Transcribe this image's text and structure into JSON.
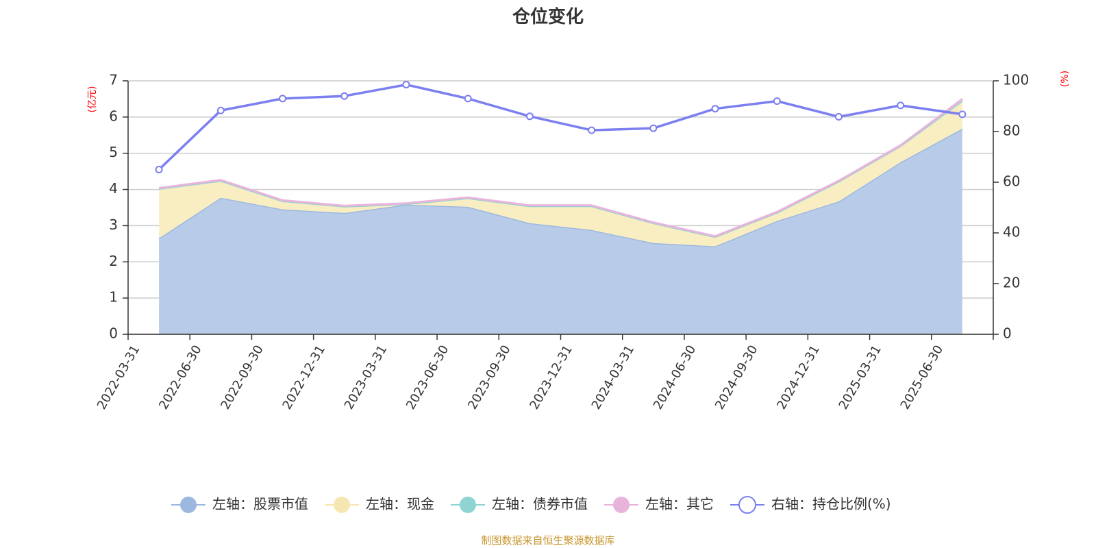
{
  "chart_data": {
    "type": "area",
    "title": "仓位变化",
    "left_unit": "(亿元)",
    "right_unit": "(%)",
    "categories": [
      "2022-03-31",
      "2022-06-30",
      "2022-09-30",
      "2022-12-31",
      "2023-03-31",
      "2023-06-30",
      "2023-09-30",
      "2023-12-31",
      "2024-03-31",
      "2024-06-30",
      "2024-09-30",
      "2024-12-31",
      "2025-03-31",
      "2025-06-30"
    ],
    "left_axis": {
      "ylim": [
        0,
        7
      ],
      "ticks": [
        "0",
        "1",
        "2",
        "3",
        "4",
        "5",
        "6",
        "7"
      ]
    },
    "right_axis": {
      "ylim": [
        0,
        100
      ],
      "ticks": [
        "0",
        "20",
        "40",
        "60",
        "80",
        "100"
      ]
    },
    "grid": true,
    "legend_position": "bottom",
    "series": [
      {
        "name": "左轴：股票市值",
        "axis": "left",
        "style": "area",
        "color": "#9db8e0",
        "fill": "#b8cce9",
        "values": [
          2.65,
          3.77,
          3.45,
          3.35,
          3.58,
          3.52,
          3.07,
          2.88,
          2.52,
          2.43,
          3.13,
          3.67,
          4.75,
          5.68
        ]
      },
      {
        "name": "左轴：现金",
        "axis": "left",
        "style": "area",
        "color": "#f6e7b2",
        "fill": "#f9eec2",
        "values": [
          1.37,
          0.47,
          0.23,
          0.18,
          0.02,
          0.24,
          0.47,
          0.66,
          0.55,
          0.26,
          0.23,
          0.55,
          0.45,
          0.77
        ]
      },
      {
        "name": "左轴：债券市值",
        "axis": "left",
        "style": "area",
        "color": "#8fd3d3",
        "fill": "#b6e2e2",
        "values": [
          0,
          0,
          0,
          0,
          0,
          0,
          0,
          0,
          0,
          0,
          0,
          0,
          0,
          0
        ]
      },
      {
        "name": "左轴：其它",
        "axis": "left",
        "style": "area",
        "color": "#e9b4dc",
        "fill": "#f2cde8",
        "values": [
          0.02,
          0.02,
          0.02,
          0.02,
          0.02,
          0.02,
          0.02,
          0.02,
          0.02,
          0.02,
          0.02,
          0.02,
          0.02,
          0.05
        ]
      },
      {
        "name": "右轴：持仓比例(%)",
        "axis": "right",
        "style": "line",
        "color": "#7b7fef",
        "values": [
          65,
          88.3,
          93,
          94,
          98.5,
          93,
          86,
          80.5,
          81.3,
          89,
          92,
          85.8,
          90.3,
          86.8
        ]
      }
    ]
  },
  "footer": {
    "source": "制图数据来自恒生聚源数据库"
  },
  "colors": {
    "axis": "#333333",
    "grid": "#cccccc",
    "left_unit": "#ff0000",
    "right_unit": "#ff0000"
  }
}
